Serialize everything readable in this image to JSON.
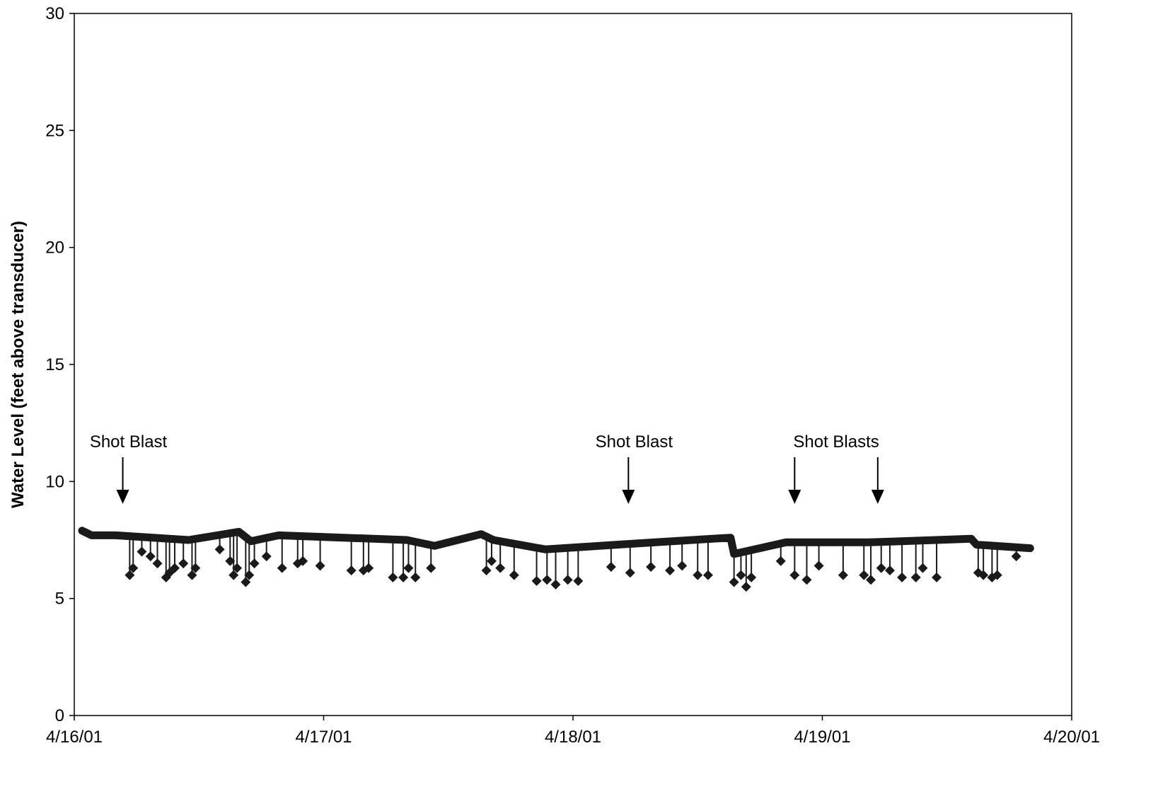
{
  "chart_data": {
    "type": "line",
    "title": "",
    "xlabel": "",
    "ylabel": "Water Level (feet above transducer)",
    "ylim": [
      0,
      30
    ],
    "yticks": [
      "0",
      "5",
      "10",
      "15",
      "20",
      "25",
      "30"
    ],
    "xlim": [
      "4/16/01",
      "4/20/01"
    ],
    "xticks": [
      "4/16/01",
      "4/17/01",
      "4/18/01",
      "4/19/01",
      "4/20/01"
    ],
    "grid": false,
    "legend": "none",
    "line_color": "#1a1a1a",
    "baseline_nodes": [
      {
        "t": "4/16/01 00:45",
        "y": 7.9
      },
      {
        "t": "4/16/01 01:40",
        "y": 7.7
      },
      {
        "t": "4/16/01 04:00",
        "y": 7.7
      },
      {
        "t": "4/16/01 11:00",
        "y": 7.5
      },
      {
        "t": "4/16/01 15:50",
        "y": 7.85
      },
      {
        "t": "4/16/01 17:00",
        "y": 7.45
      },
      {
        "t": "4/16/01 19:40",
        "y": 7.7
      },
      {
        "t": "4/17/01 08:00",
        "y": 7.5
      },
      {
        "t": "4/17/01 10:40",
        "y": 7.25
      },
      {
        "t": "4/17/01 15:10",
        "y": 7.75
      },
      {
        "t": "4/17/01 16:20",
        "y": 7.5
      },
      {
        "t": "4/17/01 21:20",
        "y": 7.1
      },
      {
        "t": "4/18/01 06:00",
        "y": 7.35
      },
      {
        "t": "4/18/01 15:10",
        "y": 7.6
      },
      {
        "t": "4/18/01 15:30",
        "y": 6.9
      },
      {
        "t": "4/18/01 20:30",
        "y": 7.4
      },
      {
        "t": "4/19/01 04:30",
        "y": 7.4
      },
      {
        "t": "4/19/01 14:20",
        "y": 7.55
      },
      {
        "t": "4/19/01 14:50",
        "y": 7.3
      },
      {
        "t": "4/19/01 20:00",
        "y": 7.15
      }
    ],
    "drawdowns": [
      {
        "t": "4/16/01 05:20",
        "y": 6.0
      },
      {
        "t": "4/16/01 05:40",
        "y": 6.3
      },
      {
        "t": "4/16/01 06:30",
        "y": 7.0
      },
      {
        "t": "4/16/01 07:20",
        "y": 6.8
      },
      {
        "t": "4/16/01 08:00",
        "y": 6.5
      },
      {
        "t": "4/16/01 08:50",
        "y": 5.9
      },
      {
        "t": "4/16/01 09:10",
        "y": 6.1
      },
      {
        "t": "4/16/01 09:40",
        "y": 6.3
      },
      {
        "t": "4/16/01 10:30",
        "y": 6.5
      },
      {
        "t": "4/16/01 11:20",
        "y": 6.0
      },
      {
        "t": "4/16/01 11:40",
        "y": 6.3
      },
      {
        "t": "4/16/01 14:00",
        "y": 7.1
      },
      {
        "t": "4/16/01 15:00",
        "y": 6.6
      },
      {
        "t": "4/16/01 15:20",
        "y": 6.0
      },
      {
        "t": "4/16/01 15:40",
        "y": 6.3
      },
      {
        "t": "4/16/01 16:30",
        "y": 5.7
      },
      {
        "t": "4/16/01 16:50",
        "y": 6.0
      },
      {
        "t": "4/16/01 17:20",
        "y": 6.5
      },
      {
        "t": "4/16/01 18:30",
        "y": 6.8
      },
      {
        "t": "4/16/01 20:00",
        "y": 6.3
      },
      {
        "t": "4/16/01 21:30",
        "y": 6.5
      },
      {
        "t": "4/16/01 22:00",
        "y": 6.6
      },
      {
        "t": "4/16/01 23:40",
        "y": 6.4
      },
      {
        "t": "4/17/01 02:40",
        "y": 6.2
      },
      {
        "t": "4/17/01 03:50",
        "y": 6.2
      },
      {
        "t": "4/17/01 04:20",
        "y": 6.3
      },
      {
        "t": "4/17/01 06:40",
        "y": 5.9
      },
      {
        "t": "4/17/01 07:40",
        "y": 5.9
      },
      {
        "t": "4/17/01 08:10",
        "y": 6.3
      },
      {
        "t": "4/17/01 08:50",
        "y": 5.9
      },
      {
        "t": "4/17/01 10:20",
        "y": 6.3
      },
      {
        "t": "4/17/01 15:40",
        "y": 6.2
      },
      {
        "t": "4/17/01 16:10",
        "y": 6.6
      },
      {
        "t": "4/17/01 17:00",
        "y": 6.3
      },
      {
        "t": "4/17/01 18:20",
        "y": 6.0
      },
      {
        "t": "4/17/01 20:30",
        "y": 5.75
      },
      {
        "t": "4/17/01 21:30",
        "y": 5.8
      },
      {
        "t": "4/17/01 22:20",
        "y": 5.6
      },
      {
        "t": "4/17/01 23:30",
        "y": 5.8
      },
      {
        "t": "4/18/01 00:30",
        "y": 5.75
      },
      {
        "t": "4/18/01 03:40",
        "y": 6.35
      },
      {
        "t": "4/18/01 05:30",
        "y": 6.1
      },
      {
        "t": "4/18/01 07:30",
        "y": 6.35
      },
      {
        "t": "4/18/01 09:20",
        "y": 6.2
      },
      {
        "t": "4/18/01 10:30",
        "y": 6.4
      },
      {
        "t": "4/18/01 12:00",
        "y": 6.0
      },
      {
        "t": "4/18/01 13:00",
        "y": 6.0
      },
      {
        "t": "4/18/01 15:30",
        "y": 5.7
      },
      {
        "t": "4/18/01 16:10",
        "y": 6.0
      },
      {
        "t": "4/18/01 16:40",
        "y": 5.5
      },
      {
        "t": "4/18/01 17:10",
        "y": 5.9
      },
      {
        "t": "4/18/01 20:00",
        "y": 6.6
      },
      {
        "t": "4/18/01 21:20",
        "y": 6.0
      },
      {
        "t": "4/18/01 22:30",
        "y": 5.8
      },
      {
        "t": "4/18/01 23:40",
        "y": 6.4
      },
      {
        "t": "4/19/01 02:00",
        "y": 6.0
      },
      {
        "t": "4/19/01 04:00",
        "y": 6.0
      },
      {
        "t": "4/19/01 04:40",
        "y": 5.8
      },
      {
        "t": "4/19/01 05:40",
        "y": 6.3
      },
      {
        "t": "4/19/01 06:30",
        "y": 6.2
      },
      {
        "t": "4/19/01 07:40",
        "y": 5.9
      },
      {
        "t": "4/19/01 09:00",
        "y": 5.9
      },
      {
        "t": "4/19/01 09:40",
        "y": 6.3
      },
      {
        "t": "4/19/01 11:00",
        "y": 5.9
      },
      {
        "t": "4/19/01 15:00",
        "y": 6.1
      },
      {
        "t": "4/19/01 15:30",
        "y": 6.0
      },
      {
        "t": "4/19/01 16:20",
        "y": 5.9
      },
      {
        "t": "4/19/01 16:50",
        "y": 6.0
      },
      {
        "t": "4/19/01 18:40",
        "y": 6.8
      }
    ],
    "annotations": [
      {
        "text": "Shot Blast",
        "arrows": [
          "4/16/01 04:40"
        ]
      },
      {
        "text": "Shot Blast",
        "arrows": [
          "4/18/01 05:20"
        ]
      },
      {
        "text": "Shot Blasts",
        "arrows": [
          "4/18/01 21:20",
          "4/19/01 05:20"
        ]
      }
    ]
  }
}
